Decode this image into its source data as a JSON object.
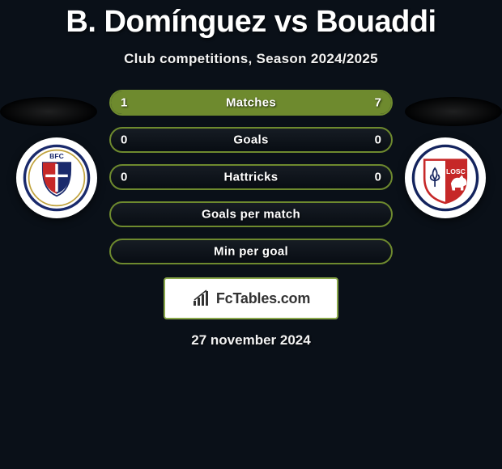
{
  "header": {
    "title": "B. Domínguez vs Bouaddi",
    "subtitle": "Club competitions, Season 2024/2025"
  },
  "colors": {
    "background": "#0a1018",
    "bar_border": "#6e8a2e",
    "bar_fill_left": "#6e8a2e",
    "bar_fill_right": "#6e8a2e",
    "watermark_border": "#8aa84a",
    "text": "#ffffff"
  },
  "badges": {
    "left": {
      "name": "bologna-badge",
      "abbr": "BFC"
    },
    "right": {
      "name": "lille-badge",
      "abbr": "LOSC"
    }
  },
  "bars": [
    {
      "label": "Matches",
      "left": "1",
      "right": "7",
      "left_fill_pct": 13,
      "right_fill_pct": 87
    },
    {
      "label": "Goals",
      "left": "0",
      "right": "0",
      "left_fill_pct": 0,
      "right_fill_pct": 0
    },
    {
      "label": "Hattricks",
      "left": "0",
      "right": "0",
      "left_fill_pct": 0,
      "right_fill_pct": 0
    },
    {
      "label": "Goals per match",
      "left": "",
      "right": "",
      "left_fill_pct": 0,
      "right_fill_pct": 0
    },
    {
      "label": "Min per goal",
      "left": "",
      "right": "",
      "left_fill_pct": 0,
      "right_fill_pct": 0
    }
  ],
  "watermark": {
    "text": "FcTables.com"
  },
  "date": "27 november 2024"
}
